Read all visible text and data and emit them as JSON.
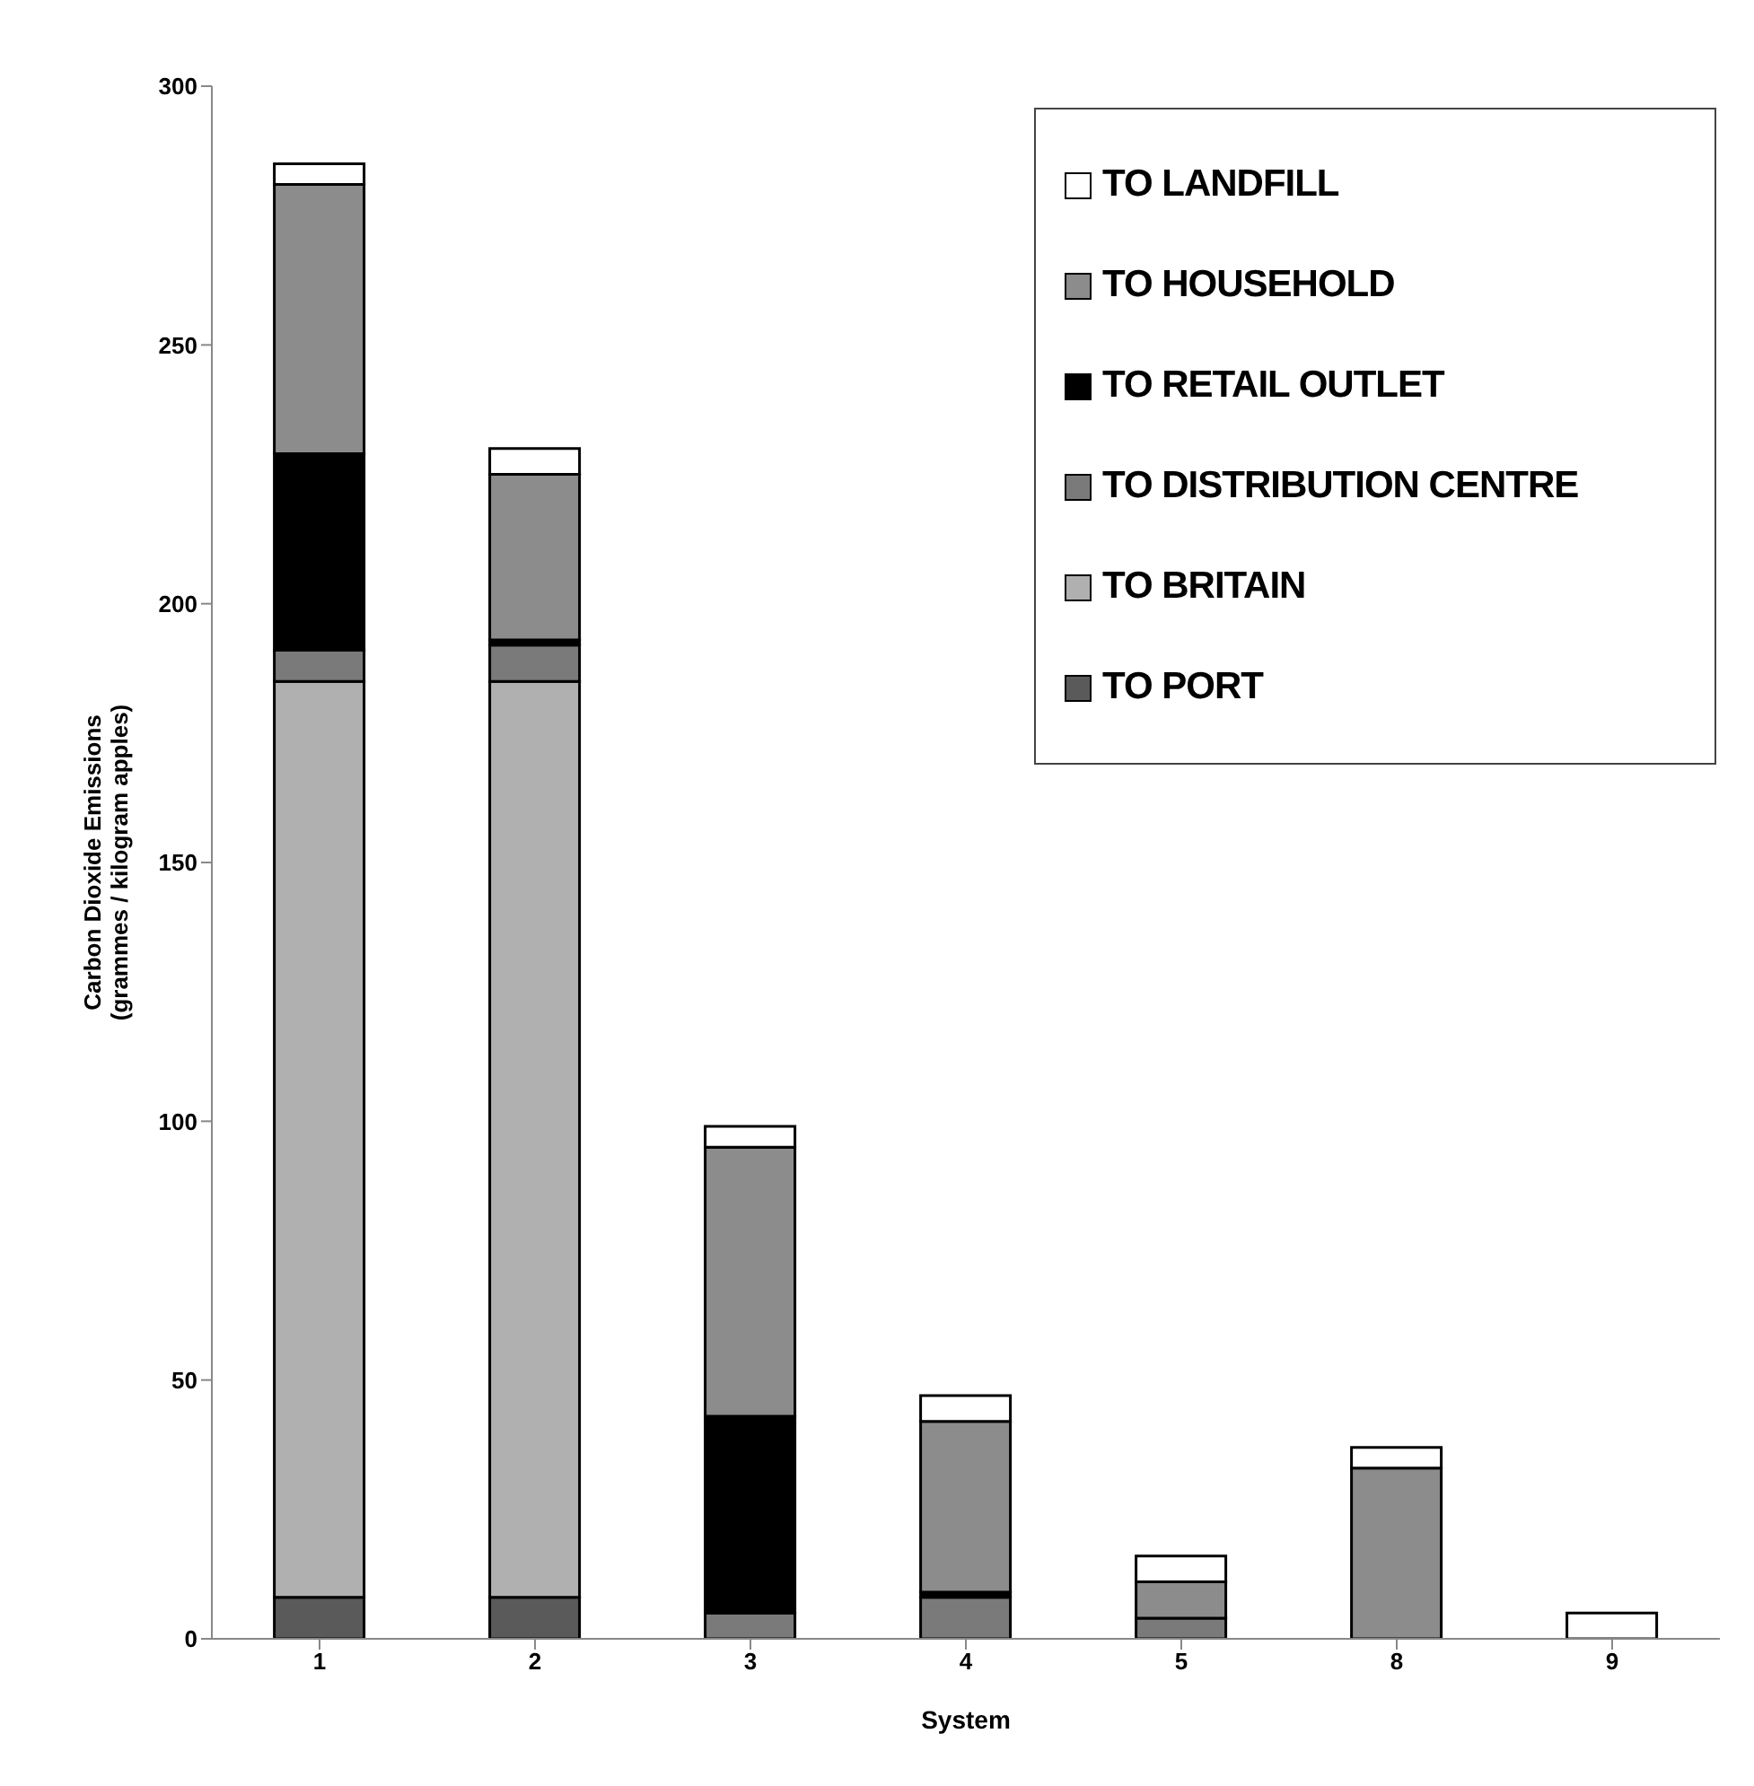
{
  "chart_data": {
    "type": "bar",
    "stacked": true,
    "xlabel": "System",
    "ylabel": "Carbon Dioxide Emissions\n(grammes / kilogram apples)",
    "categories": [
      "1",
      "2",
      "3",
      "4",
      "5",
      "8",
      "9"
    ],
    "series": [
      {
        "name": "TO PORT",
        "color": "#5a5a5a",
        "values": [
          8,
          8,
          0,
          0,
          0,
          0,
          0
        ]
      },
      {
        "name": "TO BRITAIN",
        "color": "#b0b0b0",
        "values": [
          177,
          177,
          0,
          0,
          0,
          0,
          0
        ]
      },
      {
        "name": "TO DISTRIBUTION CENTRE",
        "color": "#7a7a7a",
        "values": [
          6,
          7,
          5,
          8,
          4,
          0,
          0
        ]
      },
      {
        "name": "TO RETAIL OUTLET",
        "color": "#000000",
        "values": [
          38,
          1,
          38,
          1,
          0,
          0,
          0
        ]
      },
      {
        "name": "TO HOUSEHOLD",
        "color": "#8c8c8c",
        "values": [
          52,
          32,
          52,
          33,
          7,
          33,
          0
        ]
      },
      {
        "name": "TO LANDFILL",
        "color": "#ffffff",
        "values": [
          4,
          5,
          4,
          5,
          5,
          4,
          5
        ]
      }
    ],
    "ylim": [
      0,
      300
    ],
    "yticks": [
      0,
      50,
      100,
      150,
      200,
      250,
      300
    ],
    "grid": false,
    "legend": "top right"
  }
}
